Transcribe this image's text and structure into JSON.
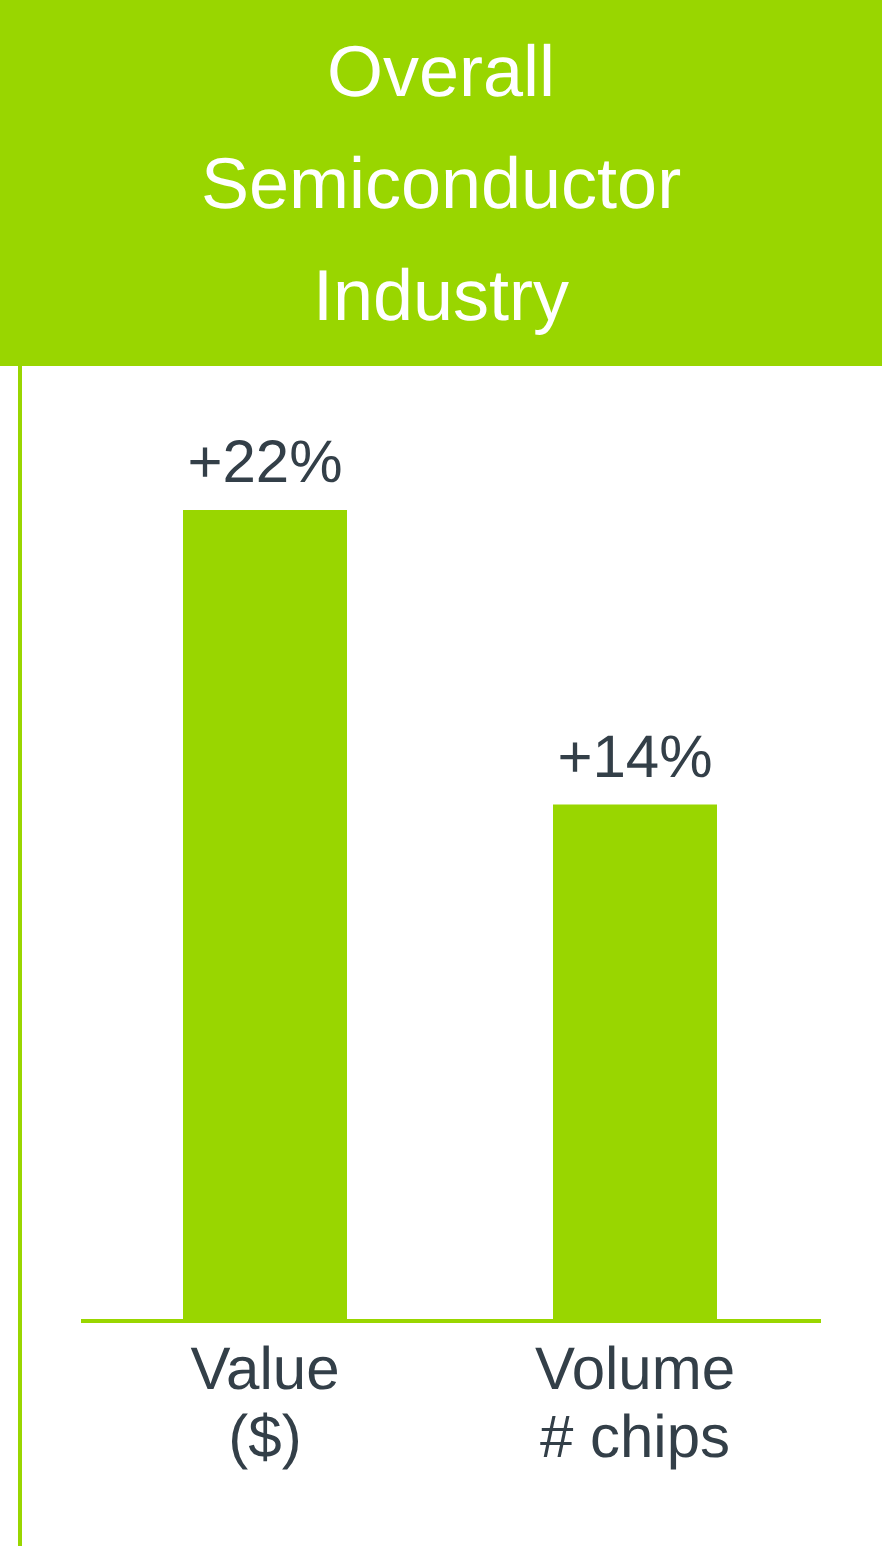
{
  "chart_data": {
    "type": "bar",
    "title": "Overall Semiconductor Industry",
    "categories": [
      "Value\n($)",
      "Volume\n# chips"
    ],
    "values": [
      22,
      14
    ],
    "color": "#99d600",
    "value_labels": [
      "+22%",
      "+14%"
    ]
  }
}
